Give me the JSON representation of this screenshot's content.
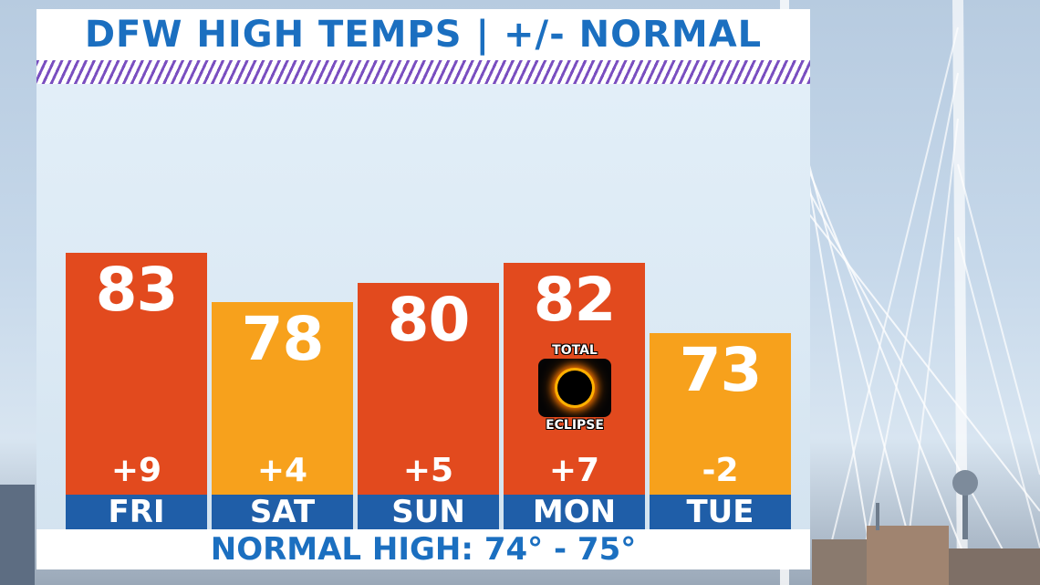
{
  "title": "DFW HIGH TEMPS | +/- NORMAL",
  "footer": "NORMAL HIGH: 74° - 75°",
  "eclipse_badge": {
    "top": "TOTAL",
    "bottom": "ECLIPSE",
    "icon": "eclipse-icon"
  },
  "colors": {
    "warm_above": "#e24a1e",
    "mild": "#f7a11c",
    "title": "#1b6fc0",
    "day_bar": "#1f5ea8"
  },
  "chart_data": {
    "type": "bar",
    "title": "DFW HIGH TEMPS | +/- NORMAL",
    "categories": [
      "FRI",
      "SAT",
      "SUN",
      "MON",
      "TUE"
    ],
    "values": [
      83,
      78,
      80,
      82,
      73
    ],
    "anomalies": [
      "+9",
      "+4",
      "+5",
      "+7",
      "-2"
    ],
    "value_labels": [
      "83",
      "78",
      "80",
      "82",
      "73"
    ],
    "bar_colors": [
      "#e24a1e",
      "#f7a11c",
      "#e24a1e",
      "#e24a1e",
      "#f7a11c"
    ],
    "ylim": [
      60,
      85
    ],
    "grid": false,
    "legend": "none"
  }
}
